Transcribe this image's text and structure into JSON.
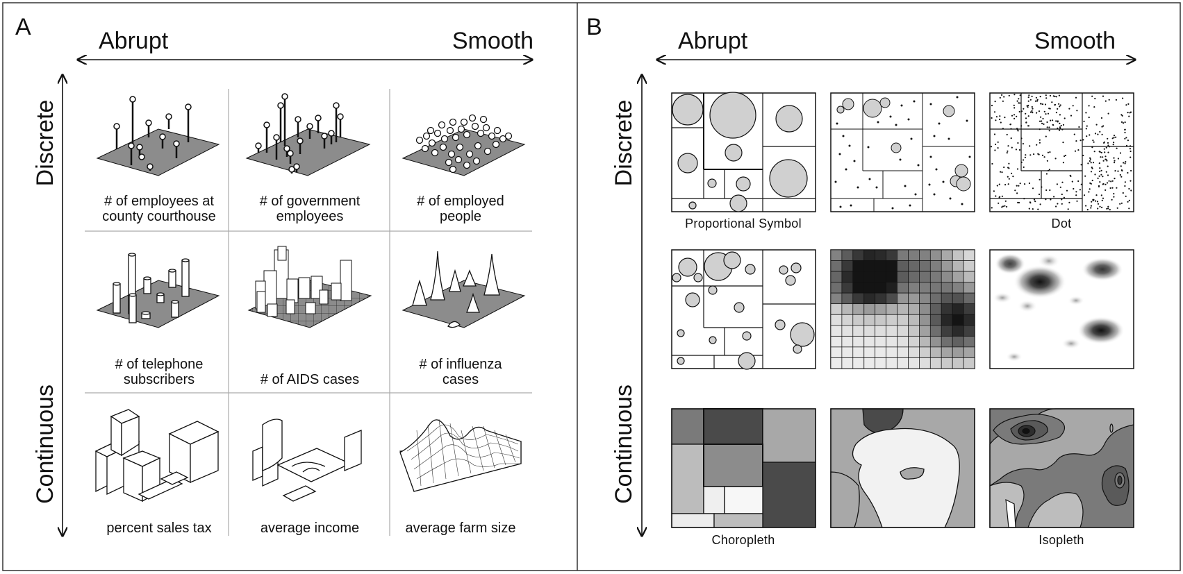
{
  "panels": {
    "a": {
      "letter": "A",
      "axis_h_left": "Abrupt",
      "axis_h_right": "Smooth",
      "axis_v_top": "Discrete",
      "axis_v_bottom": "Continuous",
      "captions": [
        [
          "# of employees at",
          "county courthouse"
        ],
        [
          "# of government",
          "employees"
        ],
        [
          "# of employed",
          "people"
        ],
        [
          "# of telephone",
          "subscribers"
        ],
        [
          "# of AIDS cases"
        ],
        [
          "# of influenza",
          "cases"
        ],
        [
          "percent sales tax"
        ],
        [
          "average income"
        ],
        [
          "average farm size"
        ]
      ]
    },
    "b": {
      "letter": "B",
      "axis_h_left": "Abrupt",
      "axis_h_right": "Smooth",
      "axis_v_top": "Discrete",
      "axis_v_bottom": "Continuous",
      "captions": [
        "Proportional Symbol",
        "",
        "Dot",
        "",
        "",
        "",
        "Choropleth",
        "",
        "Isopleth"
      ]
    }
  },
  "colors": {
    "ink": "#111111",
    "surface_gray": "#8c8c8c",
    "symbol_fill": "#d0d0d0",
    "border": "#333333"
  }
}
